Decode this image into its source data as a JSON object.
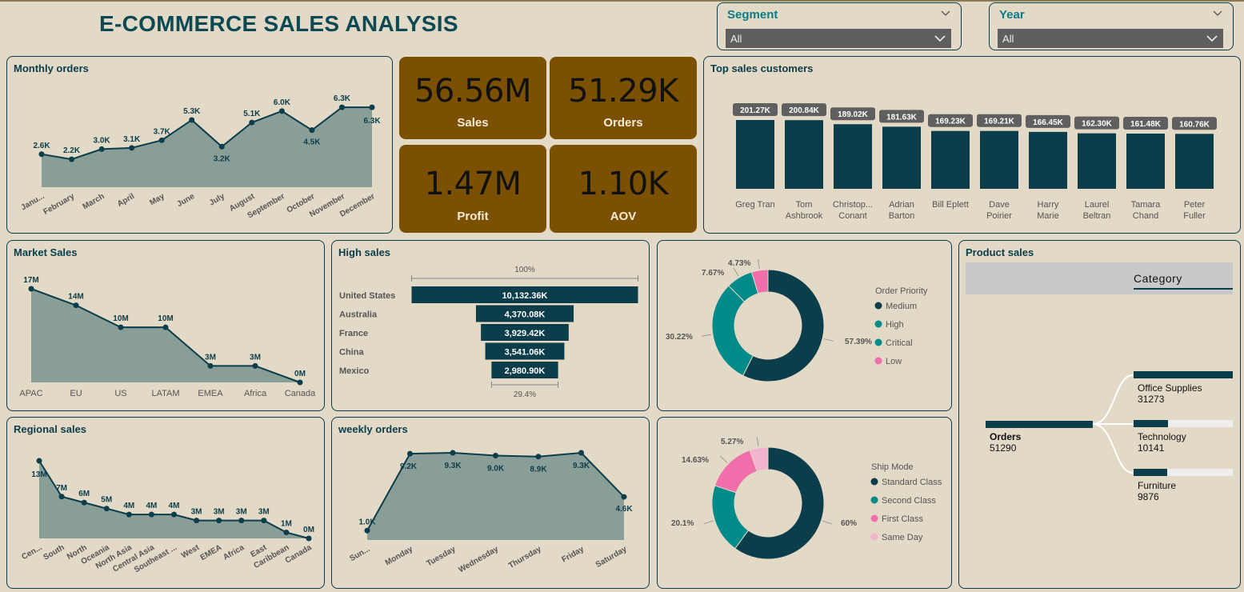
{
  "title": "E-COMMERCE SALES ANALYSIS",
  "slicers": {
    "segment": {
      "label": "Segment",
      "value": "All"
    },
    "year": {
      "label": "Year",
      "value": "All"
    }
  },
  "kpis": [
    {
      "value": "56.56M",
      "label": "Sales"
    },
    {
      "value": "51.29K",
      "label": "Orders"
    },
    {
      "value": "1.47M",
      "label": "Profit"
    },
    {
      "value": "1.10K",
      "label": "AOV"
    }
  ],
  "panels": {
    "monthly": "Monthly orders",
    "top_customers": "Top sales customers",
    "market": "Market Sales",
    "high_sales": "High sales",
    "product": "Product sales",
    "regional": "Regional sales",
    "weekly": "weekly orders"
  },
  "colors": {
    "background": "#e2d9c6",
    "dark_teal": "#0b3d4a",
    "teal": "#008b8b",
    "pink": "#f06eaa",
    "light_pink": "#f4b3cf",
    "area_fill": "#8a9e98",
    "kpi_bg": "#7b5000"
  },
  "product": {
    "header": "Category",
    "root": {
      "label": "Orders",
      "value": "51290"
    },
    "children": [
      {
        "label": "Office Supplies",
        "value": "31273"
      },
      {
        "label": "Technology",
        "value": "10141"
      },
      {
        "label": "Furniture",
        "value": "9876"
      }
    ]
  },
  "chart_data": [
    {
      "id": "monthly",
      "type": "area",
      "categories": [
        "Janu...",
        "February",
        "March",
        "April",
        "May",
        "June",
        "July",
        "August",
        "September",
        "October",
        "November",
        "December"
      ],
      "values": [
        2.6,
        2.2,
        3.0,
        3.1,
        3.7,
        5.3,
        3.2,
        5.1,
        6.0,
        4.5,
        6.3,
        6.3
      ],
      "data_labels": [
        "2.6K",
        "2.2K",
        "3.0K",
        "3.1K",
        "3.7K",
        "5.3K",
        "3.2K",
        "5.1K",
        "6.0K",
        "4.5K",
        "6.3K",
        "6.3K"
      ],
      "ylim": [
        0,
        7
      ]
    },
    {
      "id": "top_customers",
      "type": "bar",
      "categories": [
        "Greg Tran",
        "Tom Ashbrook",
        "Christop... Conant",
        "Adrian Barton",
        "Bill Eplett",
        "Dave Poirier",
        "Harry Marie",
        "Laurel Beltran",
        "Tamara Chand",
        "Peter Fuller"
      ],
      "values": [
        201.27,
        200.84,
        189.02,
        181.63,
        169.23,
        169.21,
        166.45,
        162.3,
        161.48,
        160.76
      ],
      "data_labels": [
        "201.27K",
        "200.84K",
        "189.02K",
        "181.63K",
        "169.23K",
        "169.21K",
        "166.45K",
        "162.30K",
        "161.48K",
        "160.76K"
      ],
      "ylim": [
        0,
        201.27
      ]
    },
    {
      "id": "market",
      "type": "area",
      "categories": [
        "APAC",
        "EU",
        "US",
        "LATAM",
        "EMEA",
        "Africa",
        "Canada"
      ],
      "values": [
        17,
        14,
        10,
        10,
        3,
        3,
        0
      ],
      "data_labels": [
        "17M",
        "14M",
        "10M",
        "10M",
        "3M",
        "3M",
        "0M"
      ],
      "ylim": [
        0,
        17
      ]
    },
    {
      "id": "high_sales",
      "type": "bar",
      "categories": [
        "United States",
        "Australia",
        "France",
        "China",
        "Mexico"
      ],
      "values": [
        10132.36,
        4370.08,
        3929.42,
        3541.06,
        2980.9
      ],
      "data_labels": [
        "10,132.36K",
        "4,370.08K",
        "3,929.42K",
        "3,541.06K",
        "2,980.90K"
      ],
      "top_annotation": "100%",
      "bottom_annotation": "29.4%"
    },
    {
      "id": "order_priority",
      "type": "pie",
      "legend_title": "Order Priority",
      "categories": [
        "Medium",
        "High",
        "Critical",
        "Low"
      ],
      "values": [
        57.39,
        30.22,
        7.67,
        4.73
      ],
      "data_labels": [
        "57.39%",
        "30.22%",
        "7.67%",
        "4.73%"
      ],
      "colors": [
        "#0b3d4a",
        "#008b8b",
        "#008b8b",
        "#f06eaa"
      ],
      "legend_placement": "right"
    },
    {
      "id": "regional",
      "type": "area",
      "categories": [
        "Cen...",
        "South",
        "North",
        "Oceania",
        "North Asia",
        "Central Asia",
        "Southeast ...",
        "West",
        "EMEA",
        "Africa",
        "East",
        "Caribbean",
        "Canada"
      ],
      "values": [
        13,
        7,
        6,
        5,
        4,
        4,
        4,
        3,
        3,
        3,
        3,
        1,
        0
      ],
      "data_labels": [
        "13M",
        "7M",
        "6M",
        "5M",
        "4M",
        "4M",
        "4M",
        "3M",
        "3M",
        "3M",
        "3M",
        "1M",
        "0M"
      ],
      "ylim": [
        0,
        13
      ]
    },
    {
      "id": "weekly",
      "type": "area",
      "categories": [
        "Sun...",
        "Monday",
        "Tuesday",
        "Wednesday",
        "Thursday",
        "Friday",
        "Saturday"
      ],
      "values": [
        1.0,
        9.2,
        9.3,
        9.0,
        8.9,
        9.3,
        4.6
      ],
      "data_labels": [
        "1.0K",
        "9.2K",
        "9.3K",
        "9.0K",
        "8.9K",
        "9.3K",
        "4.6K"
      ],
      "ylim": [
        0,
        9.3
      ]
    },
    {
      "id": "ship_mode",
      "type": "pie",
      "legend_title": "Ship Mode",
      "categories": [
        "Standard Class",
        "Second Class",
        "First Class",
        "Same Day"
      ],
      "values": [
        60,
        20.1,
        14.63,
        5.27
      ],
      "data_labels": [
        "60%",
        "20.1%",
        "14.63%",
        "5.27%"
      ],
      "colors": [
        "#0b3d4a",
        "#008b8b",
        "#f06eaa",
        "#f4b3cf"
      ],
      "legend_placement": "right"
    }
  ]
}
